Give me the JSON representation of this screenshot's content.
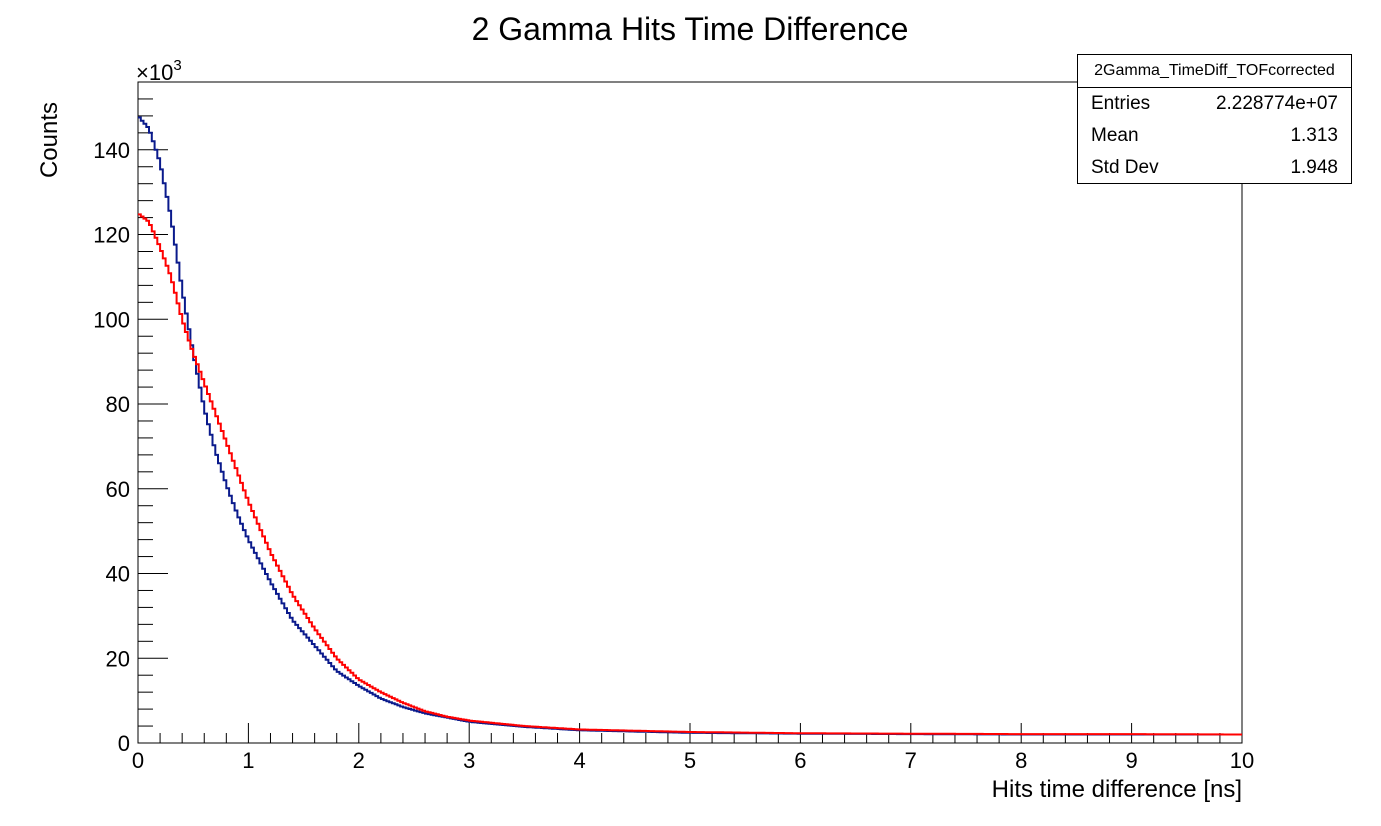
{
  "chart_data": {
    "type": "line",
    "title": "2 Gamma Hits Time Difference",
    "xlabel": "Hits time difference [ns]",
    "ylabel": "Counts",
    "y_multiplier_label": "×10",
    "y_multiplier_exponent": "3",
    "xlim": [
      0,
      10
    ],
    "ylim": [
      0,
      156
    ],
    "x_ticks": [
      0,
      1,
      2,
      3,
      4,
      5,
      6,
      7,
      8,
      9,
      10
    ],
    "y_ticks": [
      0,
      20,
      40,
      60,
      80,
      100,
      120,
      140
    ],
    "series": [
      {
        "name": "blue",
        "color": "#0a1a8c",
        "x": [
          0.0,
          0.1,
          0.2,
          0.3,
          0.4,
          0.5,
          0.6,
          0.7,
          0.8,
          0.9,
          1.0,
          1.2,
          1.4,
          1.6,
          1.8,
          2.0,
          2.2,
          2.4,
          2.6,
          2.8,
          3.0,
          3.5,
          4.0,
          5.0,
          6.0,
          7.0,
          8.0,
          9.0,
          10.0
        ],
        "values": [
          148,
          145,
          137,
          124,
          107,
          92,
          79,
          69,
          61,
          54,
          48,
          38,
          29,
          23,
          17,
          13.5,
          10.5,
          8.5,
          7,
          6,
          5,
          3.8,
          3,
          2.4,
          2.2,
          2.1,
          2,
          2,
          2
        ]
      },
      {
        "name": "red",
        "color": "#ff0000",
        "x": [
          0.0,
          0.1,
          0.2,
          0.3,
          0.4,
          0.5,
          0.6,
          0.7,
          0.8,
          0.9,
          1.0,
          1.2,
          1.4,
          1.6,
          1.8,
          2.0,
          2.2,
          2.4,
          2.6,
          2.8,
          3.0,
          3.5,
          4.0,
          5.0,
          6.0,
          7.0,
          8.0,
          9.0,
          10.0
        ],
        "values": [
          125,
          123,
          117,
          110,
          100,
          92,
          85,
          78,
          71,
          64,
          57,
          45,
          35,
          27,
          20,
          15,
          12,
          9.5,
          7.5,
          6.2,
          5.3,
          4,
          3.2,
          2.6,
          2.3,
          2.2,
          2.1,
          2.1,
          2
        ]
      }
    ]
  },
  "stats": {
    "header": "2Gamma_TimeDiff_TOFcorrected",
    "rows": [
      {
        "label": "Entries",
        "value": "2.228774e+07"
      },
      {
        "label": "Mean",
        "value": "1.313"
      },
      {
        "label": "Std Dev",
        "value": "1.948"
      }
    ]
  }
}
